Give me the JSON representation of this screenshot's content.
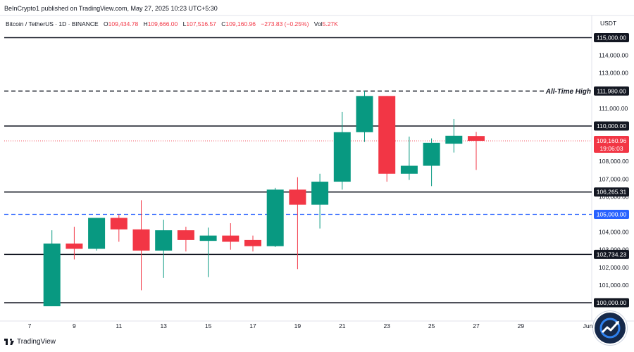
{
  "header": {
    "publisher": "BeInCrypto1 published on TradingView.com, May 27, 2025 10:23 UTC+5:30",
    "symbol": "Bitcoin / TetherUS · 1D · BINANCE",
    "o_label": "O",
    "o_value": "109,434.78",
    "h_label": "H",
    "h_value": "109,666.00",
    "l_label": "L",
    "l_value": "107,516.57",
    "c_label": "C",
    "c_value": "109,160.96",
    "change": "−273.83 (−0.25%)",
    "vol_label": "Vol",
    "vol_value": "5.27K"
  },
  "axis_unit": "USDT",
  "footer": {
    "brand": "TradingView"
  },
  "colors": {
    "up": "#089981",
    "down": "#f23645",
    "level": "#131722",
    "dashed_blue": "#2962ff",
    "price_red": "#f23645"
  },
  "chart_data": {
    "type": "candlestick",
    "ylim": [
      99500,
      115500
    ],
    "y_ticks": [
      100000,
      101000,
      102000,
      103000,
      104000,
      105000,
      106000,
      107000,
      108000,
      109000,
      110000,
      111000,
      112000,
      113000,
      114000,
      115000
    ],
    "y_tick_labels": [
      "100,000.00",
      "101,000.00",
      "102,000.00",
      "103,000.00",
      "104,000.00",
      "105,000.00",
      "106,000.00",
      "107,000.00",
      "108,000.00",
      "109,000.00",
      "110,000.00",
      "111,000.00",
      "112,000.00",
      "113,000.00",
      "114,000.00",
      "115,000.00"
    ],
    "x_ticks": [
      7,
      9,
      11,
      13,
      15,
      17,
      19,
      21,
      23,
      25,
      27,
      29,
      32
    ],
    "x_tick_labels": [
      "7",
      "9",
      "11",
      "13",
      "15",
      "17",
      "19",
      "21",
      "23",
      "25",
      "27",
      "29",
      "Jun"
    ],
    "x_range": [
      6,
      32.5
    ],
    "candles": [
      {
        "day": 8,
        "o": 99800,
        "h": 104100,
        "l": 99800,
        "c": 103350
      },
      {
        "day": 9,
        "o": 103350,
        "h": 104300,
        "l": 102450,
        "c": 103050
      },
      {
        "day": 10,
        "o": 103050,
        "h": 104800,
        "l": 102950,
        "c": 104800
      },
      {
        "day": 11,
        "o": 104800,
        "h": 105000,
        "l": 103450,
        "c": 104150
      },
      {
        "day": 12,
        "o": 104150,
        "h": 105800,
        "l": 100700,
        "c": 102950
      },
      {
        "day": 13,
        "o": 102950,
        "h": 104700,
        "l": 101400,
        "c": 104100
      },
      {
        "day": 14,
        "o": 104100,
        "h": 104300,
        "l": 102900,
        "c": 103550
      },
      {
        "day": 15,
        "o": 103500,
        "h": 104250,
        "l": 101450,
        "c": 103800
      },
      {
        "day": 16,
        "o": 103800,
        "h": 104500,
        "l": 103000,
        "c": 103450
      },
      {
        "day": 17,
        "o": 103550,
        "h": 103800,
        "l": 102900,
        "c": 103200
      },
      {
        "day": 18,
        "o": 103200,
        "h": 106500,
        "l": 103150,
        "c": 106400
      },
      {
        "day": 19,
        "o": 106400,
        "h": 107100,
        "l": 101900,
        "c": 105550
      },
      {
        "day": 20,
        "o": 105550,
        "h": 107300,
        "l": 104200,
        "c": 106850
      },
      {
        "day": 21,
        "o": 106850,
        "h": 110800,
        "l": 106400,
        "c": 109650
      },
      {
        "day": 22,
        "o": 109650,
        "h": 112000,
        "l": 109100,
        "c": 111700
      },
      {
        "day": 23,
        "o": 111700,
        "h": 111700,
        "l": 106850,
        "c": 107300
      },
      {
        "day": 24,
        "o": 107300,
        "h": 109400,
        "l": 106950,
        "c": 107750
      },
      {
        "day": 25,
        "o": 107750,
        "h": 109300,
        "l": 106600,
        "c": 109050
      },
      {
        "day": 26,
        "o": 109000,
        "h": 110400,
        "l": 108500,
        "c": 109450
      },
      {
        "day": 27,
        "o": 109434.78,
        "h": 109666,
        "l": 107516.57,
        "c": 109160.96
      }
    ],
    "levels": [
      {
        "value": 115000,
        "label": "115,000.00",
        "style": "solid"
      },
      {
        "value": 111980,
        "label": "111,980.00",
        "style": "dashed",
        "annotation": "All-Time High"
      },
      {
        "value": 110000,
        "label": "110,000.00",
        "style": "solid"
      },
      {
        "value": 106265.31,
        "label": "106,265.31",
        "style": "solid"
      },
      {
        "value": 105000,
        "label": "105,000.00",
        "style": "dashed-blue"
      },
      {
        "value": 102734.23,
        "label": "102,734.23",
        "style": "solid"
      },
      {
        "value": 100000,
        "label": "100,000.00",
        "style": "solid"
      }
    ],
    "last_price": {
      "value": 109160.96,
      "label": "109,160.96",
      "countdown": "19:06:03"
    }
  }
}
